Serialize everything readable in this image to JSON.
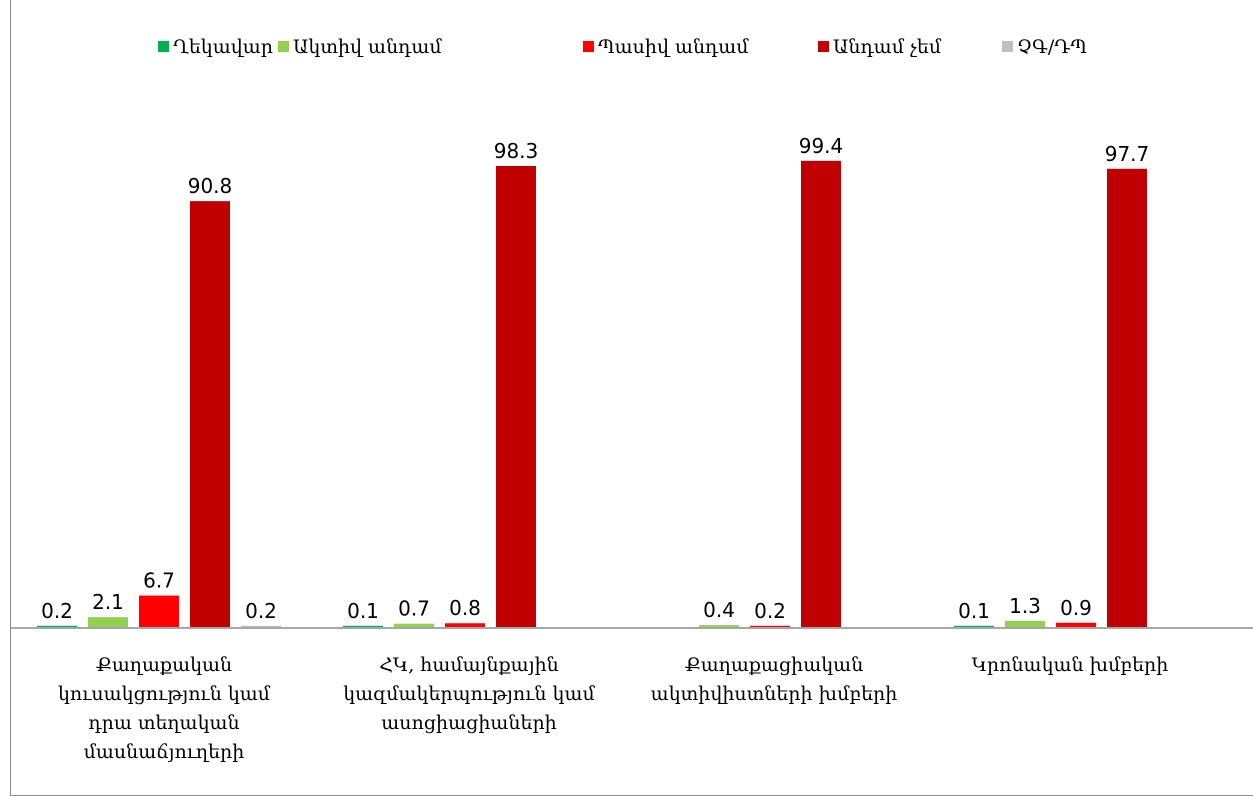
{
  "chart_data": {
    "type": "bar",
    "title": "",
    "xlabel": "",
    "ylabel": "",
    "ylim": [
      0,
      100
    ],
    "grid": false,
    "legend_position": "top",
    "categories": [
      [
        "Քաղաքական",
        "կուսակցություն կամ",
        "դրա տեղական",
        "մասնաճյուղերի"
      ],
      [
        "ՀԿ, համայնքային",
        "կազմակերպություն կամ",
        "ասոցիացիաների"
      ],
      [
        "Քաղաքացիական",
        "ակտիվիստների խմբերի"
      ],
      [
        "Կրոնական խմբերի"
      ]
    ],
    "series": [
      {
        "name": "Ղեկավար",
        "color": "#00b050",
        "values": [
          0.2,
          0.1,
          null,
          0.1
        ],
        "labels": [
          "0.2",
          "0.1",
          "",
          "0.1"
        ]
      },
      {
        "name": "Ակտիվ անդամ",
        "color": "#92d050",
        "values": [
          2.1,
          0.7,
          0.4,
          1.3
        ],
        "labels": [
          "2.1",
          "0.7",
          "0.4",
          "1.3"
        ]
      },
      {
        "name": "Պասիվ անդամ",
        "color": "#ff0000",
        "values": [
          6.7,
          0.8,
          0.2,
          0.9
        ],
        "labels": [
          "6.7",
          "0.8",
          "0.2",
          "0.9"
        ]
      },
      {
        "name": "Անդամ չեմ",
        "color": "#c00000",
        "values": [
          90.8,
          98.3,
          99.4,
          97.7
        ],
        "labels": [
          "90.8",
          "98.3",
          "99.4",
          "97.7"
        ]
      },
      {
        "name": "ՉԳ/ԴՊ",
        "color": "#bfbfbf",
        "values": [
          0.2,
          null,
          null,
          null
        ],
        "labels": [
          "0.2",
          "",
          "",
          ""
        ]
      }
    ]
  }
}
